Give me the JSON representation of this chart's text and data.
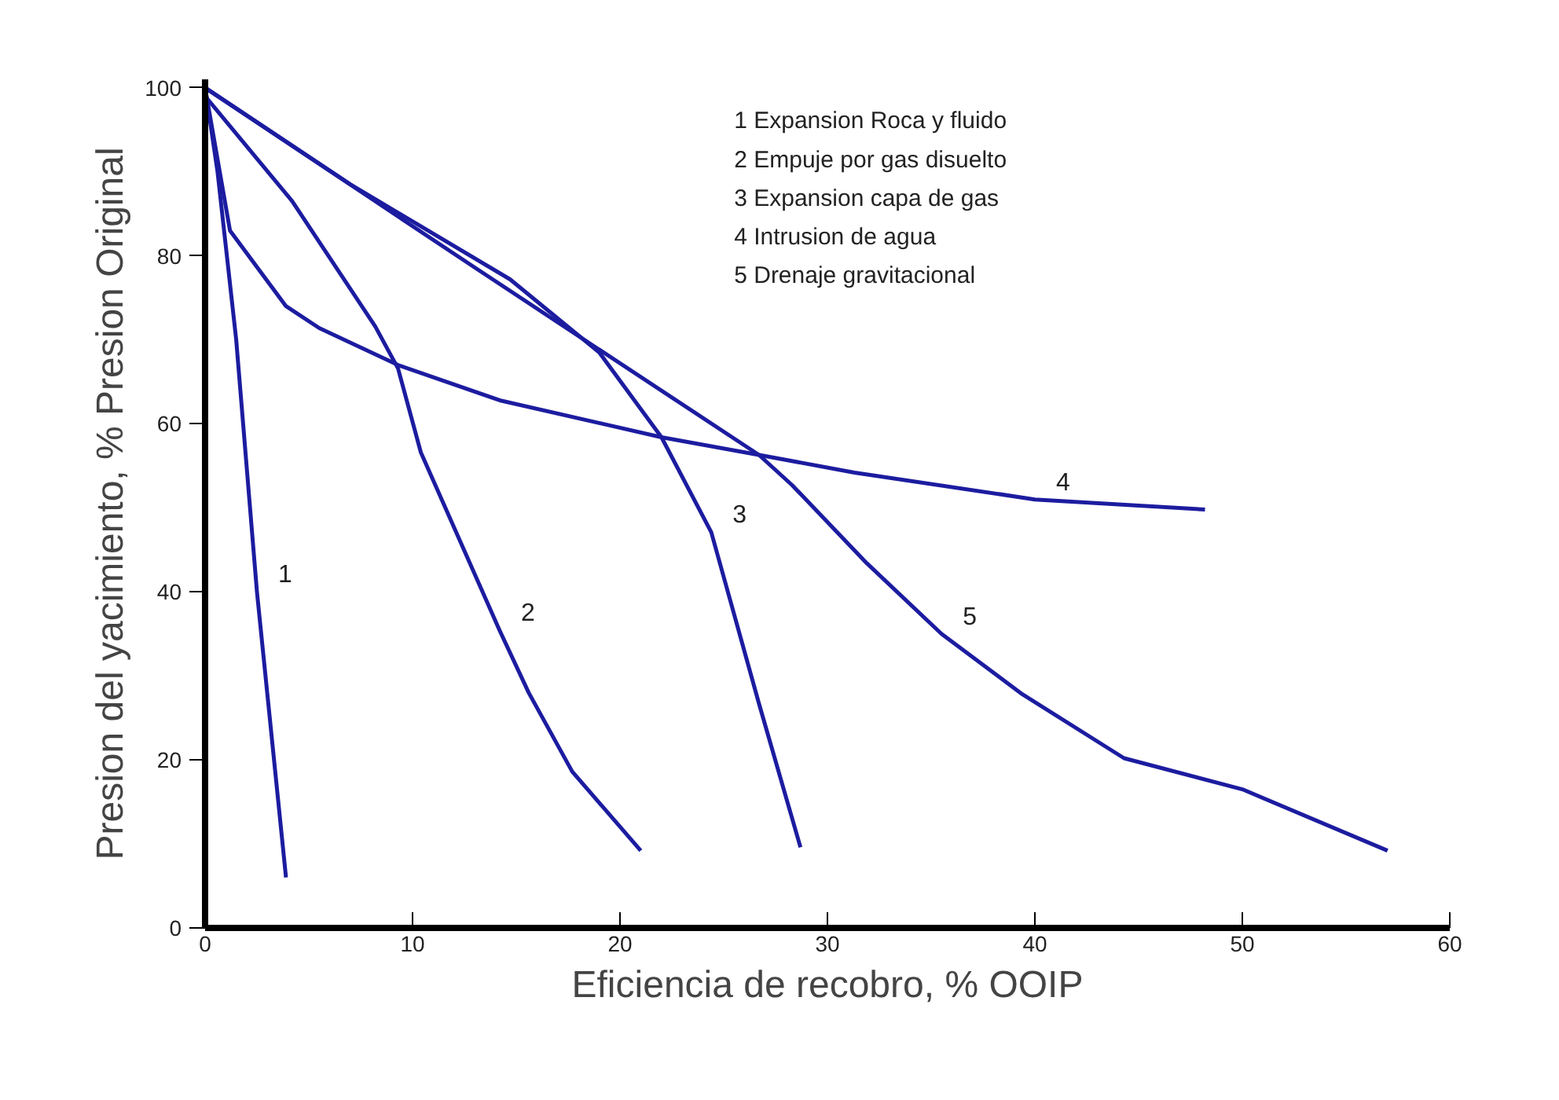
{
  "chart_data": {
    "type": "line",
    "xlabel": "Eficiencia de recobro, % OOIP",
    "ylabel": "Presion del yacimiento, % Presion Original",
    "xlim": [
      0,
      60
    ],
    "ylim": [
      0,
      101
    ],
    "xticks": [
      0,
      10,
      20,
      30,
      40,
      50,
      60
    ],
    "yticks": [
      0,
      20,
      40,
      60,
      80,
      100
    ],
    "grid": false,
    "line_style": "solid",
    "marker": "none",
    "series": [
      {
        "color": "#1c1ca0",
        "x": [
          0,
          0.6,
          1.5,
          2.5,
          3.9
        ],
        "values": [
          100,
          90,
          70,
          40,
          6
        ]
      },
      {
        "color": "#1c1ca0",
        "x": [
          0,
          4.2,
          8.2,
          9.3,
          10.4,
          14.2,
          15.6,
          17.7,
          21
        ],
        "values": [
          99,
          86.5,
          71.6,
          66.6,
          56.6,
          35.4,
          28,
          18.6,
          9.2
        ]
      },
      {
        "color": "#1c1ca0",
        "x": [
          0,
          7,
          14.7,
          19,
          22,
          24.4,
          26.7,
          28.7
        ],
        "values": [
          100,
          88.5,
          77.2,
          68.5,
          58.4,
          47.1,
          26.7,
          9.6
        ]
      },
      {
        "color": "#1c1ca0",
        "x": [
          0,
          1.2,
          3.9,
          5.5,
          9.3,
          14.2,
          22,
          26.7,
          31.3,
          40,
          48.2
        ],
        "values": [
          100,
          83,
          74,
          71.4,
          67,
          62.8,
          58.4,
          56.3,
          54.2,
          51,
          49.8
        ]
      },
      {
        "color": "#1c1ca0",
        "x": [
          0,
          13,
          26.7,
          28.3,
          31.9,
          35.5,
          39.4,
          44.3,
          50,
          57
        ],
        "values": [
          100,
          78.6,
          56.3,
          52.7,
          43.4,
          35,
          27.8,
          20.2,
          16.5,
          9.2
        ]
      }
    ],
    "annotations": [
      "1  Expansion Roca y fluido",
      "2  Empuje por gas disuelto",
      "3  Expansion capa de gas",
      "4  Intrusion de agua",
      "5  Drenaje gravitacional",
      {
        "text": "1",
        "x": 2.5,
        "y": 40
      },
      {
        "text": "2",
        "x": 14.2,
        "y": 35.4
      },
      {
        "text": "3",
        "x": 24.4,
        "y": 47.1
      },
      {
        "text": "4",
        "x": 40,
        "y": 51
      },
      {
        "text": "5",
        "x": 35.5,
        "y": 35
      }
    ]
  }
}
